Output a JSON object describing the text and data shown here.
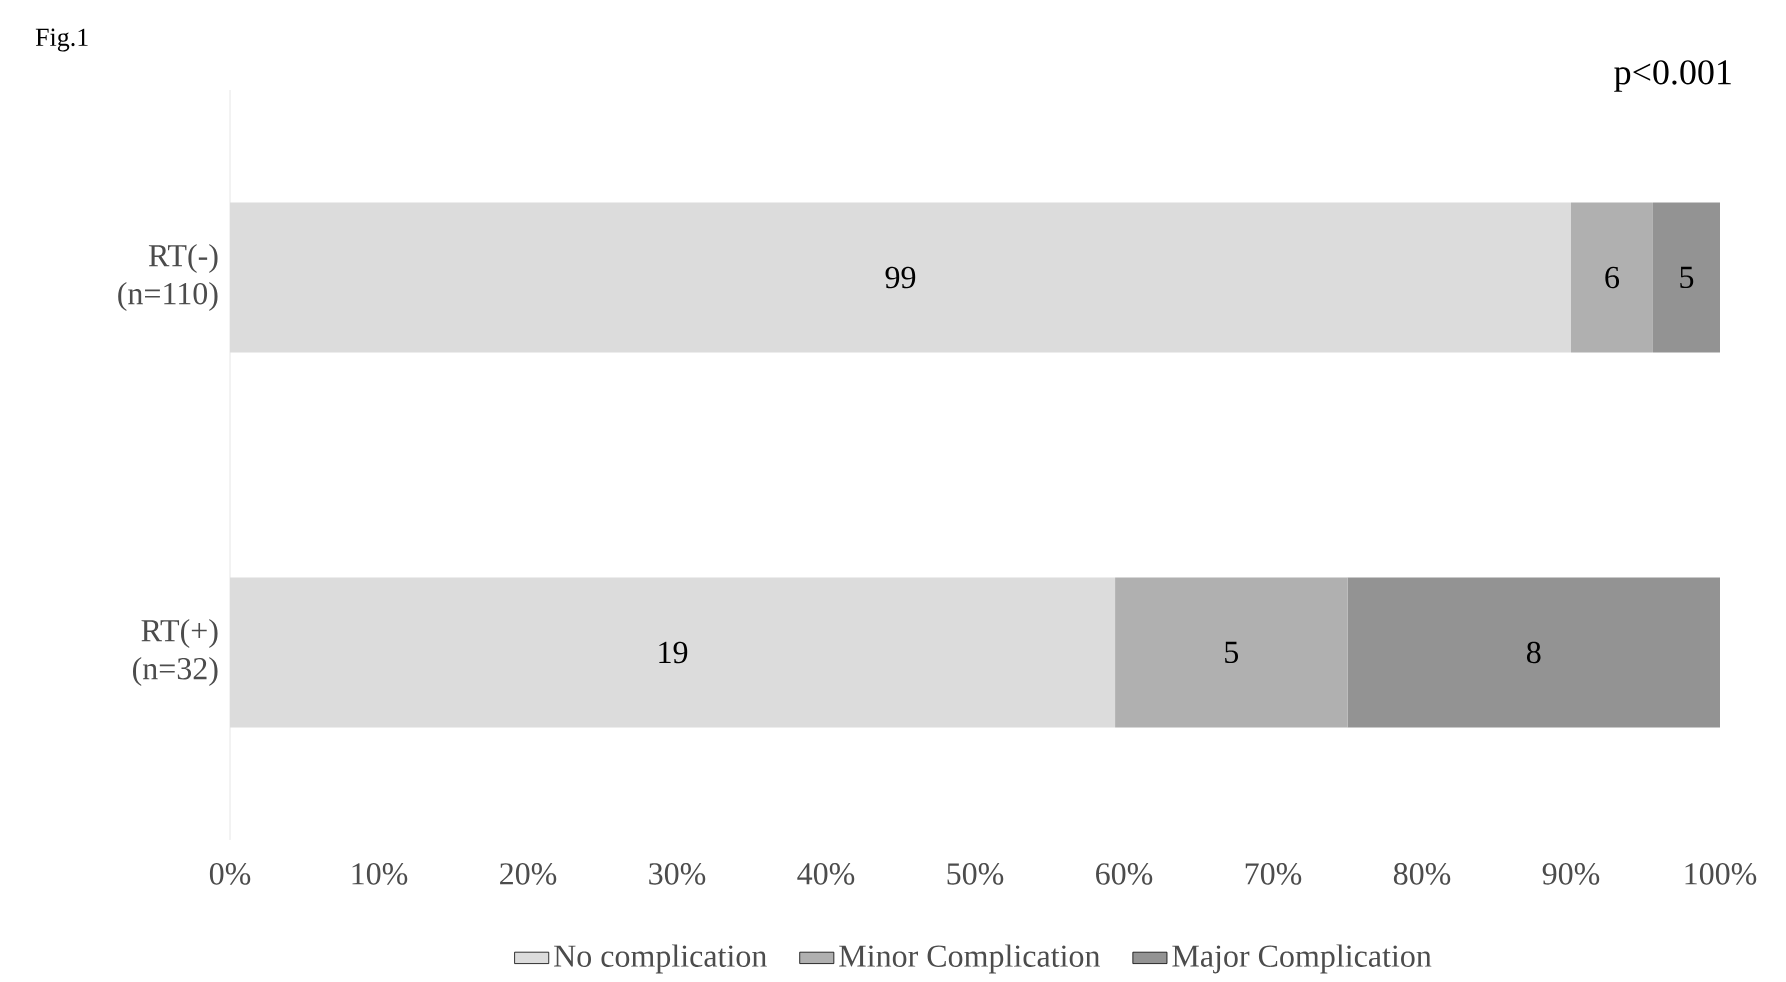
{
  "chart_data": {
    "type": "bar",
    "orientation": "horizontal",
    "stacked": true,
    "title": "Fig.1",
    "annotations": [
      "p<0.001",
      "99",
      "6",
      "5",
      "19",
      "5",
      "8"
    ],
    "categories": [
      "RT(-) (n=110)",
      "RT(+) (n=32)"
    ],
    "series": [
      {
        "name": "No complication",
        "color": "#dcdcdc",
        "values": [
          90.0,
          59.4
        ]
      },
      {
        "name": "Minor Complication",
        "color": "#b0b0b0",
        "values": [
          5.5,
          15.6
        ]
      },
      {
        "name": "Major Complication",
        "color": "#939393",
        "values": [
          4.5,
          25.0
        ]
      }
    ],
    "xlim": [
      0,
      100
    ],
    "xticks": [
      {
        "value": 0,
        "label": "0%"
      },
      {
        "value": 10,
        "label": "10%"
      },
      {
        "value": 20,
        "label": "20%"
      },
      {
        "value": 30,
        "label": "30%"
      },
      {
        "value": 40,
        "label": "40%"
      },
      {
        "value": 50,
        "label": "50%"
      },
      {
        "value": 60,
        "label": "60%"
      },
      {
        "value": 70,
        "label": "70%"
      },
      {
        "value": 80,
        "label": "80%"
      },
      {
        "value": 90,
        "label": "90%"
      },
      {
        "value": 100,
        "label": "100%"
      }
    ],
    "grid": false,
    "legend": "bottom"
  }
}
